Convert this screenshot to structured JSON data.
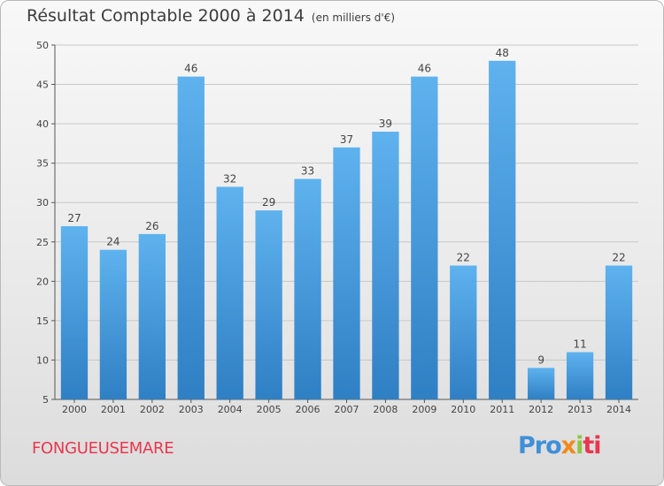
{
  "chart_data": {
    "type": "bar",
    "title": "Résultat Comptable 2000 à 2014",
    "unit": "(en milliers d'€)",
    "categories": [
      "2000",
      "2001",
      "2002",
      "2003",
      "2004",
      "2005",
      "2006",
      "2007",
      "2008",
      "2009",
      "2010",
      "2011",
      "2012",
      "2013",
      "2014"
    ],
    "values": [
      27,
      24,
      26,
      46,
      32,
      29,
      33,
      37,
      39,
      46,
      22,
      48,
      9,
      11,
      22
    ],
    "value_labels": [
      "27",
      "24",
      "26",
      "46",
      "32",
      "29",
      "33",
      "37",
      "39",
      "46",
      "22",
      "48",
      "9",
      "11",
      "22"
    ],
    "ylim": [
      5,
      50
    ],
    "yticks": [
      5,
      10,
      15,
      20,
      25,
      30,
      35,
      40,
      45,
      50
    ],
    "ytick_labels": [
      "5",
      "10",
      "15",
      "20",
      "25",
      "30",
      "35",
      "40",
      "45",
      "50"
    ],
    "grid": true,
    "bar_color": "#4a9fe0",
    "xlabel": "",
    "ylabel": ""
  },
  "commune": "FONGUEUSEMARE",
  "logo": {
    "part1": "Pro",
    "part2": "x",
    "part3": "i",
    "part4": "ti"
  },
  "colors": {
    "title": "#3c3c3c",
    "commune": "#e8374f",
    "grid": "#c8c8c8"
  }
}
